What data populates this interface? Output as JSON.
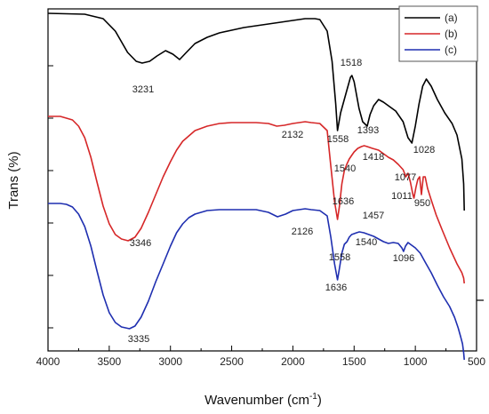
{
  "chart_data": {
    "type": "line",
    "xlabel": "Wavenumber (cm",
    "xlabel_sup": "-1",
    "xlabel_suffix": ")",
    "ylabel": "Trans (%)",
    "xlim": [
      4000,
      500
    ],
    "x_ticks": [
      "4000",
      "3500",
      "3000",
      "2500",
      "2000",
      "1500",
      "1000",
      "500"
    ],
    "grid": false,
    "legend_position": "top-right",
    "series": [
      {
        "name": "(a)",
        "color": "#000000",
        "points": [
          [
            4000,
            8
          ],
          [
            3700,
            9
          ],
          [
            3550,
            14
          ],
          [
            3450,
            28
          ],
          [
            3350,
            52
          ],
          [
            3280,
            62
          ],
          [
            3231,
            64
          ],
          [
            3170,
            62
          ],
          [
            3110,
            56
          ],
          [
            3040,
            50
          ],
          [
            2980,
            54
          ],
          [
            2925,
            60
          ],
          [
            2870,
            52
          ],
          [
            2800,
            42
          ],
          [
            2700,
            35
          ],
          [
            2600,
            30
          ],
          [
            2500,
            27
          ],
          [
            2400,
            24
          ],
          [
            2300,
            22
          ],
          [
            2200,
            20
          ],
          [
            2100,
            18
          ],
          [
            2000,
            16
          ],
          [
            1900,
            14
          ],
          [
            1860,
            14
          ],
          [
            1820,
            14
          ],
          [
            1780,
            15
          ],
          [
            1720,
            28
          ],
          [
            1680,
            62
          ],
          [
            1650,
            110
          ],
          [
            1636,
            140
          ],
          [
            1610,
            120
          ],
          [
            1560,
            95
          ],
          [
            1530,
            80
          ],
          [
            1518,
            78
          ],
          [
            1500,
            85
          ],
          [
            1460,
            115
          ],
          [
            1430,
            130
          ],
          [
            1393,
            135
          ],
          [
            1370,
            122
          ],
          [
            1340,
            112
          ],
          [
            1300,
            105
          ],
          [
            1260,
            108
          ],
          [
            1220,
            112
          ],
          [
            1160,
            118
          ],
          [
            1100,
            130
          ],
          [
            1060,
            148
          ],
          [
            1028,
            154
          ],
          [
            1000,
            135
          ],
          [
            970,
            110
          ],
          [
            940,
            90
          ],
          [
            910,
            82
          ],
          [
            870,
            90
          ],
          [
            820,
            105
          ],
          [
            760,
            120
          ],
          [
            700,
            132
          ],
          [
            660,
            145
          ],
          [
            620,
            172
          ],
          [
            605,
            200
          ],
          [
            600,
            230
          ]
        ]
      },
      {
        "name": "(b)",
        "color": "#d62728",
        "points": [
          [
            4000,
            124
          ],
          [
            3900,
            124
          ],
          [
            3850,
            126
          ],
          [
            3800,
            128
          ],
          [
            3750,
            135
          ],
          [
            3700,
            148
          ],
          [
            3650,
            170
          ],
          [
            3600,
            198
          ],
          [
            3550,
            225
          ],
          [
            3500,
            245
          ],
          [
            3450,
            257
          ],
          [
            3400,
            262
          ],
          [
            3346,
            264
          ],
          [
            3290,
            260
          ],
          [
            3240,
            250
          ],
          [
            3180,
            232
          ],
          [
            3120,
            212
          ],
          [
            3060,
            192
          ],
          [
            3000,
            175
          ],
          [
            2950,
            162
          ],
          [
            2900,
            152
          ],
          [
            2850,
            146
          ],
          [
            2800,
            140
          ],
          [
            2700,
            135
          ],
          [
            2600,
            132
          ],
          [
            2500,
            131
          ],
          [
            2400,
            131
          ],
          [
            2300,
            131
          ],
          [
            2200,
            132
          ],
          [
            2132,
            135
          ],
          [
            2070,
            134
          ],
          [
            2000,
            132
          ],
          [
            1900,
            130
          ],
          [
            1850,
            131
          ],
          [
            1780,
            132
          ],
          [
            1720,
            140
          ],
          [
            1690,
            180
          ],
          [
            1660,
            220
          ],
          [
            1636,
            240
          ],
          [
            1620,
            225
          ],
          [
            1600,
            200
          ],
          [
            1580,
            185
          ],
          [
            1560,
            178
          ],
          [
            1540,
            172
          ],
          [
            1520,
            168
          ],
          [
            1500,
            164
          ],
          [
            1470,
            160
          ],
          [
            1440,
            158
          ],
          [
            1418,
            157
          ],
          [
            1393,
            158
          ],
          [
            1350,
            160
          ],
          [
            1300,
            162
          ],
          [
            1260,
            166
          ],
          [
            1220,
            170
          ],
          [
            1180,
            173
          ],
          [
            1140,
            178
          ],
          [
            1100,
            184
          ],
          [
            1077,
            192
          ],
          [
            1060,
            188
          ],
          [
            1040,
            198
          ],
          [
            1020,
            212
          ],
          [
            1011,
            216
          ],
          [
            995,
            204
          ],
          [
            980,
            195
          ],
          [
            965,
            192
          ],
          [
            950,
            212
          ],
          [
            935,
            192
          ],
          [
            920,
            192
          ],
          [
            900,
            205
          ],
          [
            870,
            218
          ],
          [
            830,
            235
          ],
          [
            780,
            252
          ],
          [
            720,
            272
          ],
          [
            660,
            290
          ],
          [
            620,
            300
          ],
          [
            605,
            306
          ],
          [
            600,
            312
          ]
        ]
      },
      {
        "name": "(c)",
        "color": "#1f2fb0",
        "points": [
          [
            4000,
            222
          ],
          [
            3900,
            222
          ],
          [
            3850,
            223
          ],
          [
            3800,
            226
          ],
          [
            3750,
            234
          ],
          [
            3700,
            248
          ],
          [
            3650,
            270
          ],
          [
            3600,
            298
          ],
          [
            3550,
            325
          ],
          [
            3500,
            345
          ],
          [
            3450,
            356
          ],
          [
            3400,
            361
          ],
          [
            3335,
            363
          ],
          [
            3290,
            360
          ],
          [
            3240,
            350
          ],
          [
            3180,
            332
          ],
          [
            3120,
            310
          ],
          [
            3060,
            290
          ],
          [
            3000,
            270
          ],
          [
            2950,
            255
          ],
          [
            2900,
            245
          ],
          [
            2850,
            238
          ],
          [
            2800,
            234
          ],
          [
            2700,
            230
          ],
          [
            2600,
            229
          ],
          [
            2500,
            229
          ],
          [
            2400,
            229
          ],
          [
            2300,
            229
          ],
          [
            2200,
            232
          ],
          [
            2126,
            237
          ],
          [
            2060,
            234
          ],
          [
            2000,
            230
          ],
          [
            1900,
            228
          ],
          [
            1850,
            229
          ],
          [
            1780,
            230
          ],
          [
            1720,
            236
          ],
          [
            1690,
            260
          ],
          [
            1660,
            290
          ],
          [
            1636,
            308
          ],
          [
            1620,
            295
          ],
          [
            1600,
            278
          ],
          [
            1580,
            268
          ],
          [
            1558,
            265
          ],
          [
            1540,
            260
          ],
          [
            1520,
            257
          ],
          [
            1500,
            256
          ],
          [
            1480,
            255
          ],
          [
            1457,
            254
          ],
          [
            1420,
            255
          ],
          [
            1380,
            257
          ],
          [
            1340,
            259
          ],
          [
            1300,
            262
          ],
          [
            1260,
            265
          ],
          [
            1220,
            267
          ],
          [
            1180,
            266
          ],
          [
            1140,
            267
          ],
          [
            1110,
            272
          ],
          [
            1096,
            276
          ],
          [
            1080,
            270
          ],
          [
            1060,
            266
          ],
          [
            1040,
            268
          ],
          [
            1000,
            272
          ],
          [
            960,
            278
          ],
          [
            920,
            288
          ],
          [
            870,
            300
          ],
          [
            820,
            314
          ],
          [
            770,
            327
          ],
          [
            720,
            338
          ],
          [
            680,
            350
          ],
          [
            650,
            362
          ],
          [
            630,
            372
          ],
          [
            615,
            380
          ],
          [
            605,
            390
          ],
          [
            600,
            398
          ]
        ]
      }
    ],
    "annotations": [
      {
        "text": "3231"
      },
      {
        "text": "1518"
      },
      {
        "text": "1558"
      },
      {
        "text": "1393"
      },
      {
        "text": "1418"
      },
      {
        "text": "1028"
      },
      {
        "text": "2132"
      },
      {
        "text": "1540"
      },
      {
        "text": "1077"
      },
      {
        "text": "1636"
      },
      {
        "text": "1011"
      },
      {
        "text": "950"
      },
      {
        "text": "3346"
      },
      {
        "text": "2126"
      },
      {
        "text": "1457"
      },
      {
        "text": "1540"
      },
      {
        "text": "1558"
      },
      {
        "text": "1096"
      },
      {
        "text": "1636"
      },
      {
        "text": "3335"
      }
    ]
  }
}
